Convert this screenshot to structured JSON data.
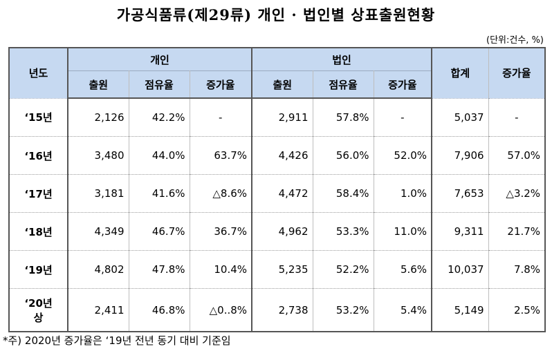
{
  "title": "가공식품류(제29류) 개인 · 법인별 상표출원현황",
  "unit": "(단위:건수, %)",
  "header": {
    "year": "년도",
    "individual": "개인",
    "corporate": "법인",
    "total": "합계",
    "growth": "증가율",
    "sub": [
      "출원",
      "점유율",
      "증가율",
      "출원",
      "점유율",
      "증가율"
    ]
  },
  "rows": [
    {
      "year": "‘15년",
      "cells": [
        "2,126",
        "42.2%",
        "-",
        "2,911",
        "57.8%",
        "-",
        "5,037",
        "-"
      ]
    },
    {
      "year": "‘16년",
      "cells": [
        "3,480",
        "44.0%",
        "63.7%",
        "4,426",
        "56.0%",
        "52.0%",
        "7,906",
        "57.0%"
      ]
    },
    {
      "year": "‘17년",
      "cells": [
        "3,181",
        "41.6%",
        "△8.6%",
        "4,472",
        "58.4%",
        "1.0%",
        "7,653",
        "△3.2%"
      ]
    },
    {
      "year": "‘18년",
      "cells": [
        "4,349",
        "46.7%",
        "36.7%",
        "4,962",
        "53.3%",
        "11.0%",
        "9,311",
        "21.7%"
      ]
    },
    {
      "year": "‘19년",
      "cells": [
        "4,802",
        "47.8%",
        "10.4%",
        "5,235",
        "52.2%",
        "5.6%",
        "10,037",
        "7.8%"
      ]
    },
    {
      "year_line1": "‘20년",
      "year_line2": "상",
      "cells": [
        "2,411",
        "46.8%",
        "△0..8%",
        "2,738",
        "53.2%",
        "5.4%",
        "5,149",
        "2.5%"
      ]
    }
  ],
  "footnote": "*주) 2020년 증가율은 ‘19년 전년 동기 대비 기준임"
}
